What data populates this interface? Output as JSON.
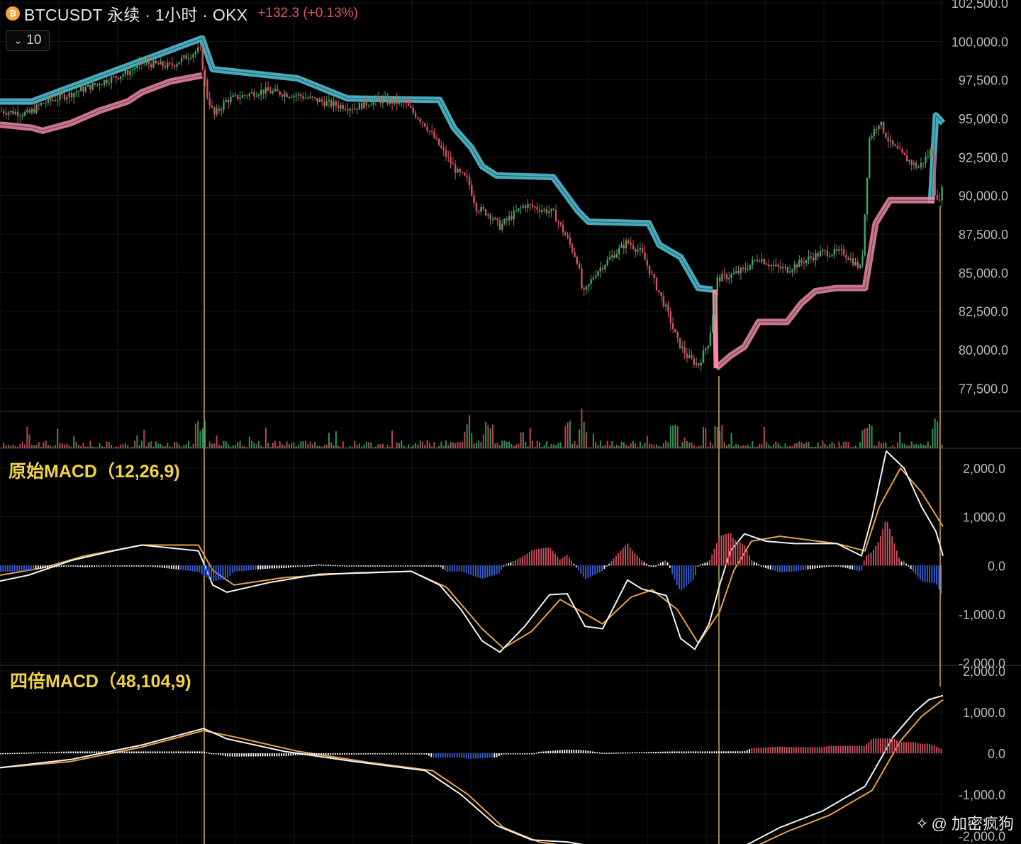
{
  "header": {
    "title": "BTCUSDT 永续 · 1小时 · OKX",
    "change": "+132.3 (+0.13%)",
    "collapse_label": "10",
    "coin_icon": "bitcoin-icon"
  },
  "indicators": {
    "macd1_title": "原始MACD（12,26,9)",
    "macd2_title": "四倍MACD（48,104,9)"
  },
  "watermark": "@ 加密疯狗",
  "colors": {
    "up": "#3fa864",
    "down": "#d2535f",
    "upper_band": "#56c8dc",
    "lower_band": "#f08aa2",
    "hist_up": "#d2535f",
    "hist_down": "#3a5fd8",
    "hist_pale": "#ffffff",
    "dif": "#f2f2f2",
    "dea": "#e6a04a",
    "marker": "#e9c46a"
  },
  "chart_data": [
    {
      "type": "candlestick",
      "title": "BTCUSDT 永续 · 1小时 · OKX",
      "y_ticks": [
        "102,500.0",
        "100,000.0",
        "97,500.0",
        "95,000.0",
        "92,500.0",
        "90,000.0",
        "87,500.0",
        "85,000.0",
        "82,500.0",
        "80,000.0",
        "77,500.0"
      ],
      "ylim": [
        76000,
        102500
      ],
      "price_path": [
        [
          0,
          95500
        ],
        [
          40,
          95300
        ],
        [
          60,
          96000
        ],
        [
          100,
          96600
        ],
        [
          140,
          97300
        ],
        [
          180,
          98000
        ],
        [
          200,
          98600
        ],
        [
          240,
          98400
        ],
        [
          282,
          99500
        ],
        [
          292,
          96500
        ],
        [
          302,
          95200
        ],
        [
          320,
          96200
        ],
        [
          370,
          96800
        ],
        [
          420,
          96500
        ],
        [
          470,
          95900
        ],
        [
          500,
          95700
        ],
        [
          530,
          96200
        ],
        [
          570,
          96000
        ],
        [
          600,
          94600
        ],
        [
          630,
          92500
        ],
        [
          645,
          91500
        ],
        [
          660,
          91000
        ],
        [
          672,
          89200
        ],
        [
          690,
          88800
        ],
        [
          705,
          88000
        ],
        [
          720,
          88600
        ],
        [
          740,
          89400
        ],
        [
          780,
          88900
        ],
        [
          800,
          87200
        ],
        [
          815,
          85700
        ],
        [
          822,
          83500
        ],
        [
          840,
          85000
        ],
        [
          862,
          86000
        ],
        [
          885,
          87000
        ],
        [
          905,
          86300
        ],
        [
          920,
          84700
        ],
        [
          940,
          82600
        ],
        [
          955,
          80600
        ],
        [
          970,
          79500
        ],
        [
          985,
          79000
        ],
        [
          1000,
          80600
        ],
        [
          1012,
          84600
        ],
        [
          1030,
          84800
        ],
        [
          1050,
          85200
        ],
        [
          1070,
          86000
        ],
        [
          1090,
          85400
        ],
        [
          1110,
          85200
        ],
        [
          1140,
          85900
        ],
        [
          1160,
          86300
        ],
        [
          1190,
          86300
        ],
        [
          1215,
          85200
        ],
        [
          1226,
          93700
        ],
        [
          1240,
          94800
        ],
        [
          1255,
          93400
        ],
        [
          1275,
          92500
        ],
        [
          1295,
          91800
        ],
        [
          1315,
          93000
        ],
        [
          1320,
          89300
        ],
        [
          1330,
          90500
        ]
      ],
      "upper_band_path": [
        [
          0,
          96100
        ],
        [
          45,
          96100
        ],
        [
          285,
          100200
        ],
        [
          300,
          98200
        ],
        [
          360,
          97900
        ],
        [
          420,
          97600
        ],
        [
          490,
          96300
        ],
        [
          620,
          96200
        ],
        [
          640,
          94400
        ],
        [
          665,
          93100
        ],
        [
          680,
          91900
        ],
        [
          700,
          91300
        ],
        [
          780,
          91200
        ],
        [
          815,
          89000
        ],
        [
          830,
          88300
        ],
        [
          915,
          88200
        ],
        [
          930,
          86800
        ],
        [
          960,
          86000
        ],
        [
          985,
          84000
        ],
        [
          1005,
          83900
        ]
      ],
      "upper_band_path_2": [
        [
          1313,
          89500
        ],
        [
          1320,
          95200
        ],
        [
          1330,
          94700
        ]
      ],
      "lower_band_path": [
        [
          0,
          94600
        ],
        [
          45,
          94400
        ],
        [
          60,
          94200
        ],
        [
          100,
          94700
        ],
        [
          140,
          95500
        ],
        [
          180,
          96100
        ],
        [
          200,
          96700
        ],
        [
          240,
          97400
        ],
        [
          285,
          97800
        ]
      ],
      "lower_band_path_2": [
        [
          1010,
          78800
        ],
        [
          1030,
          79600
        ],
        [
          1050,
          80200
        ],
        [
          1070,
          81800
        ],
        [
          1110,
          81800
        ],
        [
          1130,
          83000
        ],
        [
          1150,
          83800
        ],
        [
          1180,
          84000
        ],
        [
          1220,
          84000
        ],
        [
          1235,
          88200
        ],
        [
          1255,
          89700
        ],
        [
          1318,
          89700
        ]
      ],
      "markers_x": [
        288,
        1014,
        1326
      ],
      "volume_spikes_x": [
        280,
        285,
        660,
        690,
        800,
        820,
        950,
        1014,
        1221,
        1226,
        1320
      ]
    },
    {
      "type": "line",
      "title": "原始MACD（12,26,9)",
      "y_ticks": [
        "2,000.0",
        "1,000.0",
        "0.0",
        "-1,000.0",
        "-2,000.0"
      ],
      "ylim": [
        -2050,
        2350
      ],
      "series": [
        {
          "name": "DIF",
          "values": [
            [
              0,
              -320
            ],
            [
              40,
              -200
            ],
            [
              100,
              100
            ],
            [
              160,
              300
            ],
            [
              200,
              420
            ],
            [
              280,
              300
            ],
            [
              300,
              -400
            ],
            [
              320,
              -550
            ],
            [
              380,
              -350
            ],
            [
              450,
              -180
            ],
            [
              520,
              -150
            ],
            [
              580,
              -120
            ],
            [
              620,
              -400
            ],
            [
              650,
              -900
            ],
            [
              680,
              -1550
            ],
            [
              705,
              -1780
            ],
            [
              740,
              -1250
            ],
            [
              775,
              -600
            ],
            [
              800,
              -580
            ],
            [
              825,
              -1250
            ],
            [
              850,
              -1300
            ],
            [
              885,
              -300
            ],
            [
              905,
              -480
            ],
            [
              940,
              -620
            ],
            [
              960,
              -1500
            ],
            [
              980,
              -1720
            ],
            [
              1000,
              -1200
            ],
            [
              1015,
              -400
            ],
            [
              1030,
              300
            ],
            [
              1050,
              650
            ],
            [
              1080,
              500
            ],
            [
              1120,
              450
            ],
            [
              1180,
              450
            ],
            [
              1215,
              200
            ],
            [
              1230,
              1000
            ],
            [
              1250,
              2350
            ],
            [
              1275,
              2000
            ],
            [
              1300,
              1200
            ],
            [
              1320,
              700
            ],
            [
              1330,
              200
            ]
          ]
        },
        {
          "name": "DEA",
          "values": [
            [
              0,
              -200
            ],
            [
              60,
              -50
            ],
            [
              120,
              200
            ],
            [
              200,
              420
            ],
            [
              280,
              420
            ],
            [
              300,
              -100
            ],
            [
              330,
              -400
            ],
            [
              400,
              -250
            ],
            [
              500,
              -150
            ],
            [
              580,
              -120
            ],
            [
              630,
              -450
            ],
            [
              680,
              -1300
            ],
            [
              710,
              -1700
            ],
            [
              750,
              -1350
            ],
            [
              790,
              -700
            ],
            [
              820,
              -950
            ],
            [
              850,
              -1200
            ],
            [
              890,
              -650
            ],
            [
              920,
              -500
            ],
            [
              955,
              -900
            ],
            [
              985,
              -1600
            ],
            [
              1015,
              -950
            ],
            [
              1035,
              -100
            ],
            [
              1060,
              500
            ],
            [
              1100,
              600
            ],
            [
              1180,
              450
            ],
            [
              1220,
              300
            ],
            [
              1240,
              1200
            ],
            [
              1270,
              2000
            ],
            [
              1300,
              1500
            ],
            [
              1330,
              800
            ]
          ]
        }
      ]
    },
    {
      "type": "line",
      "title": "四倍MACD（48,104,9)",
      "y_ticks": [
        "2,000.0",
        "1,000.0",
        "0.0",
        "-1,000.0",
        "-2,000.0"
      ],
      "ylim": [
        -2200,
        2100
      ],
      "series": [
        {
          "name": "DIF",
          "values": [
            [
              0,
              -350
            ],
            [
              100,
              -150
            ],
            [
              200,
              200
            ],
            [
              287,
              600
            ],
            [
              320,
              350
            ],
            [
              400,
              50
            ],
            [
              500,
              -200
            ],
            [
              600,
              -420
            ],
            [
              650,
              -1000
            ],
            [
              700,
              -1750
            ],
            [
              750,
              -2100
            ],
            [
              800,
              -2150
            ],
            [
              850,
              -2300
            ],
            [
              950,
              -2300
            ],
            [
              1050,
              -2250
            ],
            [
              1100,
              -1800
            ],
            [
              1160,
              -1400
            ],
            [
              1220,
              -800
            ],
            [
              1260,
              400
            ],
            [
              1290,
              1000
            ],
            [
              1310,
              1300
            ],
            [
              1330,
              1400
            ]
          ]
        },
        {
          "name": "DEA",
          "values": [
            [
              0,
              -350
            ],
            [
              100,
              -200
            ],
            [
              200,
              150
            ],
            [
              287,
              550
            ],
            [
              330,
              400
            ],
            [
              420,
              50
            ],
            [
              520,
              -220
            ],
            [
              610,
              -420
            ],
            [
              660,
              -1000
            ],
            [
              710,
              -1800
            ],
            [
              760,
              -2150
            ],
            [
              820,
              -2300
            ],
            [
              950,
              -2350
            ],
            [
              1060,
              -2300
            ],
            [
              1110,
              -1900
            ],
            [
              1170,
              -1500
            ],
            [
              1230,
              -900
            ],
            [
              1270,
              300
            ],
            [
              1300,
              900
            ],
            [
              1330,
              1300
            ]
          ]
        }
      ]
    }
  ]
}
